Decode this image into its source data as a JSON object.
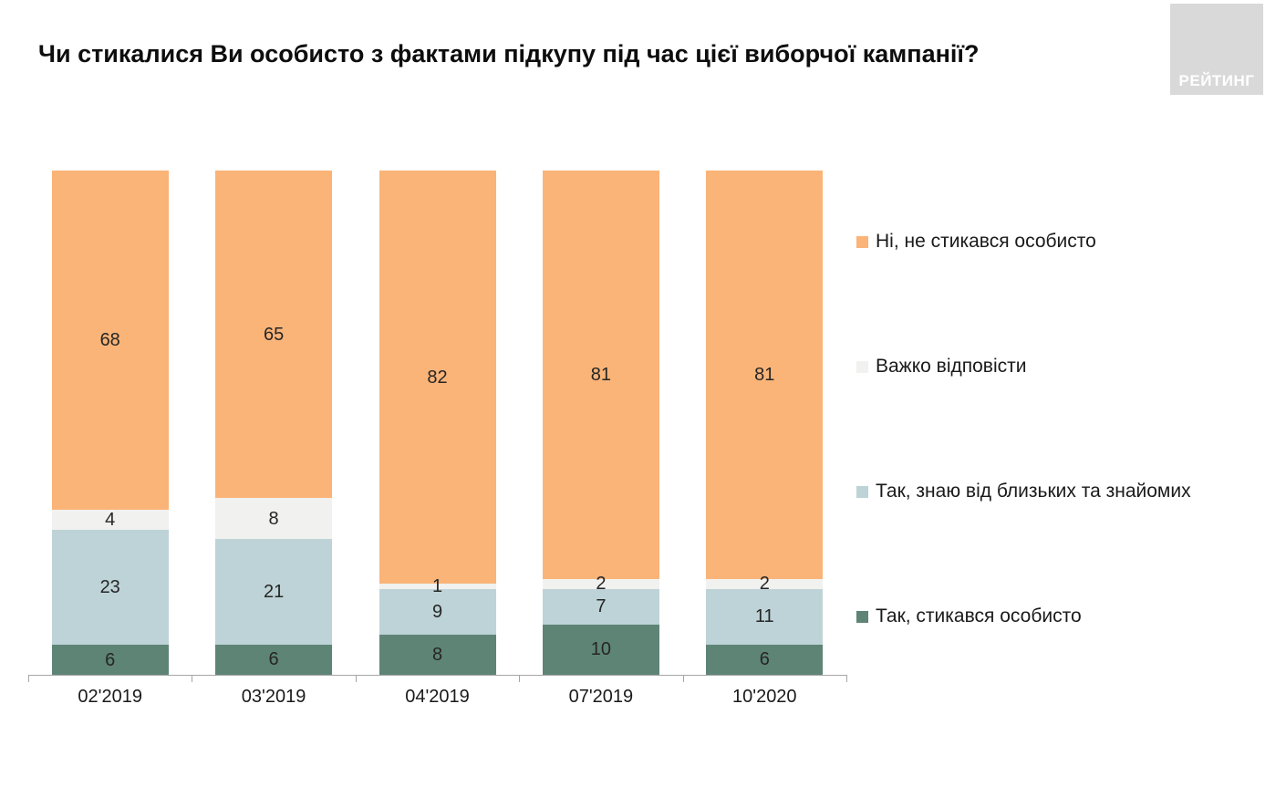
{
  "title": "Чи стикалися Ви особисто з фактами підкупу під час цієї виборчої кампанії?",
  "logo": {
    "text": "РЕЙТИНГ",
    "bg_color": "#d9d9d9",
    "text_color": "#ffffff"
  },
  "chart_data": {
    "type": "bar",
    "stacked": true,
    "orientation": "vertical",
    "grid": false,
    "legend_position": "right",
    "value_unit": "percent",
    "ylim": [
      0,
      101
    ],
    "categories": [
      "02'2019",
      "03'2019",
      "04'2019",
      "07'2019",
      "10'2020"
    ],
    "series": [
      {
        "name": "Так, стикався особисто",
        "color": "#5e8476",
        "values": [
          6,
          6,
          8,
          10,
          6
        ]
      },
      {
        "name": "Так, знаю від близьких та знайомих",
        "color": "#bdd3d7",
        "values": [
          23,
          21,
          9,
          7,
          11
        ]
      },
      {
        "name": "Важко відповісти",
        "color": "#f1f1ef",
        "values": [
          4,
          8,
          1,
          2,
          2
        ]
      },
      {
        "name": "Ні, не стикався особисто",
        "color": "#fab478",
        "values": [
          68,
          65,
          82,
          81,
          81
        ]
      }
    ],
    "legend_top_to_bottom": [
      "Ні, не стикався особисто",
      "Важко відповісти",
      "Так, знаю від близьких та знайомих",
      "Так, стикався особисто"
    ]
  }
}
